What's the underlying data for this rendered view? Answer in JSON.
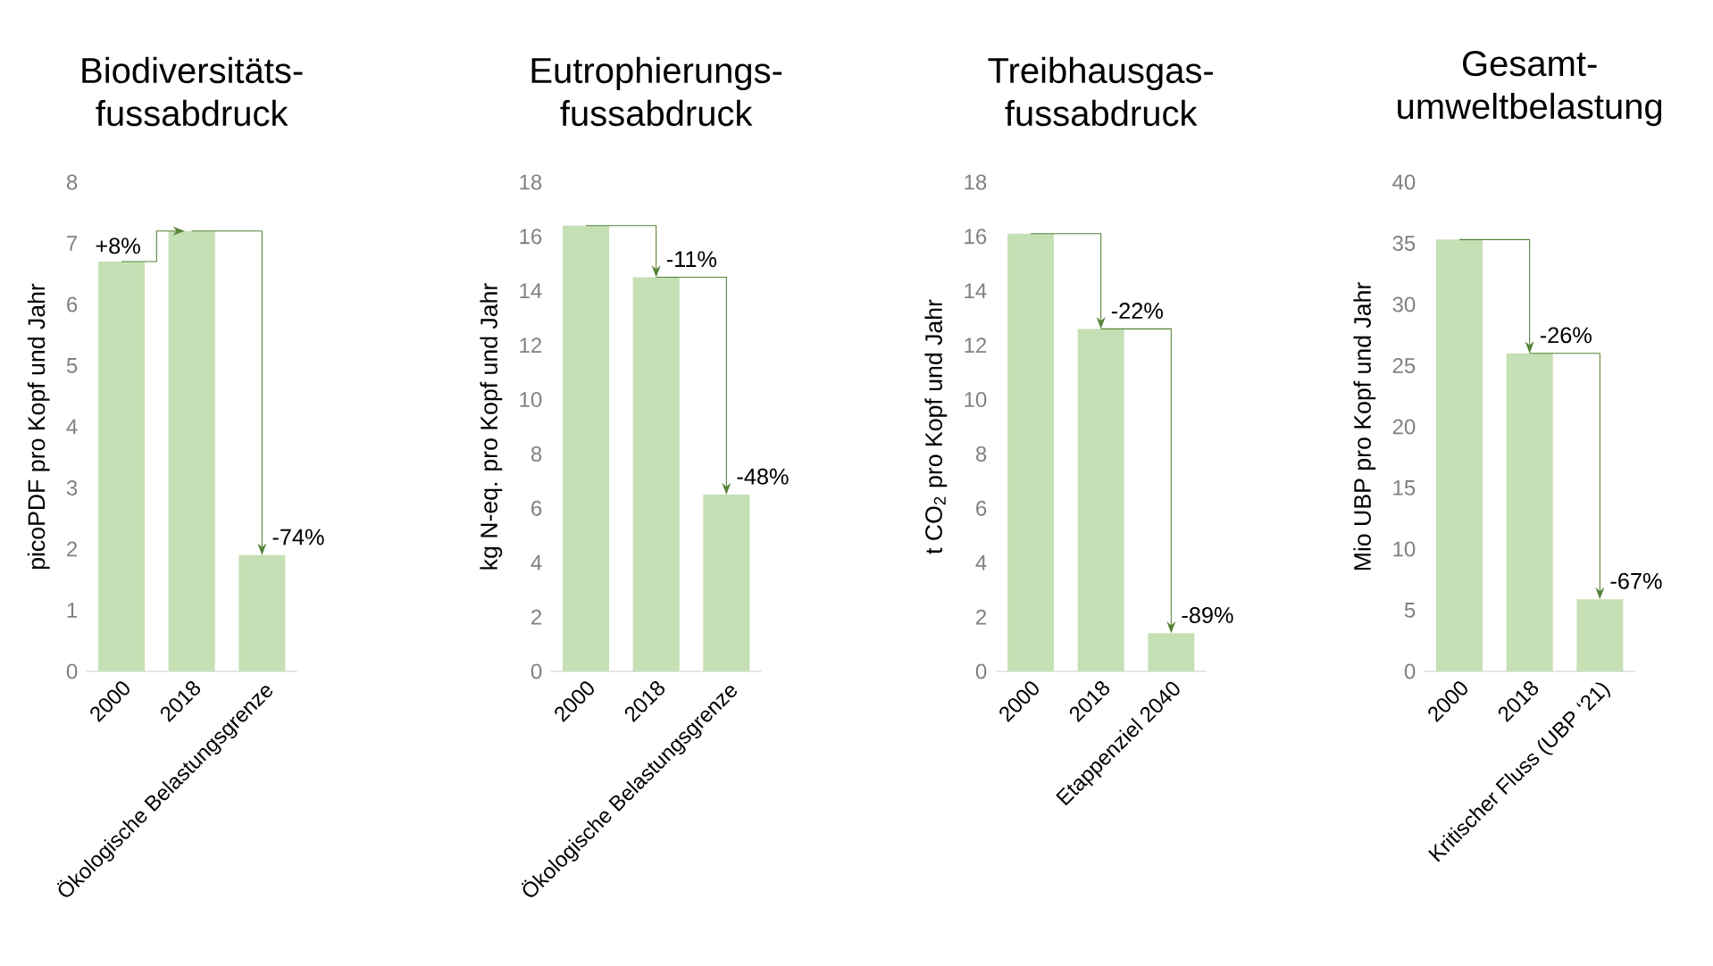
{
  "chart_data": [
    {
      "type": "bar",
      "title": "Biodiversitäts-fussabdruck",
      "ylabel": "picoPDF pro Kopf und Jahr",
      "categories": [
        "2000",
        "2018",
        "Ökologische Belastungsgrenze"
      ],
      "values": [
        6.7,
        7.2,
        1.9
      ],
      "color": "#c5e0b4",
      "ylim": [
        0,
        8
      ],
      "yticks": [
        0,
        1,
        2,
        3,
        4,
        5,
        6,
        7,
        8
      ],
      "annotations": [
        {
          "text": "+8%",
          "x": "2018",
          "y": 7.2
        },
        {
          "text": "-74%",
          "x": "Ökologische Belastungsgrenze",
          "y": 1.9
        }
      ]
    },
    {
      "type": "bar",
      "title": "Eutrophierungs-fussabdruck",
      "ylabel": "kg N-eq. pro Kopf und Jahr",
      "categories": [
        "2000",
        "2018",
        "Ökologische Belastungsgrenze"
      ],
      "values": [
        16.4,
        14.5,
        6.5
      ],
      "color": "#c5e0b4",
      "ylim": [
        0,
        18
      ],
      "yticks": [
        0,
        2,
        4,
        6,
        8,
        10,
        12,
        14,
        16,
        18
      ],
      "annotations": [
        {
          "text": "-11%",
          "x": "2018",
          "y": 14.5
        },
        {
          "text": "-48%",
          "x": "Ökologische Belastungsgrenze",
          "y": 6.5
        }
      ]
    },
    {
      "type": "bar",
      "title": "Treibhausgas-fussabdruck",
      "ylabel": "t CO$_{2}$ pro Kopf und Jahr",
      "categories": [
        "2000",
        "2018",
        "Etappenziel 2040"
      ],
      "values": [
        16.1,
        12.6,
        1.4
      ],
      "color": "#c5e0b4",
      "ylim": [
        0,
        18
      ],
      "yticks": [
        0,
        2,
        4,
        6,
        8,
        10,
        12,
        14,
        16,
        18
      ],
      "annotations": [
        {
          "text": "-22%",
          "x": "2018",
          "y": 12.6
        },
        {
          "text": "-89%",
          "x": "Etappenziel 2040",
          "y": 1.4
        }
      ]
    },
    {
      "type": "bar",
      "title": "Gesamt-umweltbelastung",
      "ylabel": "Mio UBP pro Kopf und Jahr",
      "categories": [
        "2000",
        "2018",
        "Kritischer Fluss (UBP ‘21)"
      ],
      "values": [
        35.3,
        26.0,
        5.9
      ],
      "color": "#c5e0b4",
      "ylim": [
        0,
        40
      ],
      "yticks": [
        0,
        5,
        10,
        15,
        20,
        25,
        30,
        35,
        40
      ],
      "annotations": [
        {
          "text": "-26%",
          "x": "2018",
          "y": 26.0
        },
        {
          "text": "-67%",
          "x": "Kritischer Fluss (UBP ‘21)",
          "y": 5.9
        }
      ]
    }
  ]
}
